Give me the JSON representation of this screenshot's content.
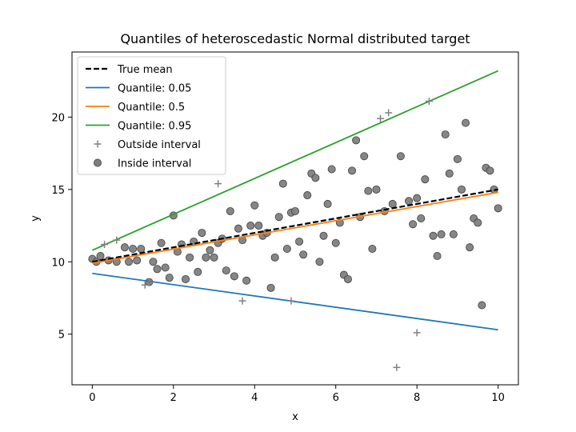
{
  "chart_data": {
    "type": "scatter",
    "title": "Quantiles of heteroscedastic Normal distributed target",
    "xlabel": "x",
    "ylabel": "y",
    "xlim": [
      -0.5,
      10.5
    ],
    "ylim": [
      1.5,
      24.5
    ],
    "xticks": [
      0,
      2,
      4,
      6,
      8,
      10
    ],
    "yticks": [
      5,
      10,
      15,
      20
    ],
    "xtick_labels": [
      "0",
      "2",
      "4",
      "6",
      "8",
      "10"
    ],
    "ytick_labels": [
      "5",
      "10",
      "15",
      "20"
    ],
    "grid": false,
    "legend_position": "upper-left",
    "lines": [
      {
        "name": "True mean",
        "color": "#000000",
        "dash": true,
        "x": [
          0,
          10
        ],
        "y": [
          10.0,
          15.0
        ]
      },
      {
        "name": "Quantile: 0.05",
        "color": "#1f77b4",
        "dash": false,
        "x": [
          0,
          10
        ],
        "y": [
          9.2,
          5.3
        ]
      },
      {
        "name": "Quantile: 0.5",
        "color": "#ff7f0e",
        "dash": false,
        "x": [
          0,
          10
        ],
        "y": [
          9.9,
          14.8
        ]
      },
      {
        "name": "Quantile: 0.95",
        "color": "#2ca02c",
        "dash": false,
        "x": [
          0,
          10
        ],
        "y": [
          10.8,
          23.2
        ]
      }
    ],
    "outside": {
      "name": "Outside interval",
      "x": [
        0.3,
        0.6,
        1.3,
        1.4,
        3.1,
        3.7,
        4.9,
        7.1,
        7.3,
        7.5,
        8.0,
        8.3
      ],
      "y": [
        11.2,
        11.5,
        8.4,
        8.6,
        15.4,
        7.3,
        7.3,
        19.9,
        20.3,
        2.7,
        5.1,
        21.1
      ]
    },
    "inside": {
      "name": "Inside interval",
      "x": [
        0.0,
        0.1,
        0.2,
        0.4,
        0.6,
        0.8,
        0.9,
        1.0,
        1.1,
        1.2,
        1.4,
        1.5,
        1.6,
        1.7,
        1.8,
        1.9,
        2.0,
        2.1,
        2.2,
        2.3,
        2.4,
        2.5,
        2.6,
        2.7,
        2.8,
        2.9,
        3.0,
        3.1,
        3.2,
        3.3,
        3.4,
        3.5,
        3.6,
        3.7,
        3.8,
        3.9,
        4.0,
        4.1,
        4.2,
        4.3,
        4.4,
        4.5,
        4.6,
        4.7,
        4.8,
        4.9,
        5.0,
        5.1,
        5.2,
        5.3,
        5.4,
        5.5,
        5.6,
        5.7,
        5.8,
        5.9,
        6.0,
        6.1,
        6.2,
        6.3,
        6.4,
        6.5,
        6.6,
        6.7,
        6.8,
        6.9,
        7.0,
        7.2,
        7.4,
        7.6,
        7.8,
        7.9,
        8.0,
        8.1,
        8.2,
        8.4,
        8.5,
        8.6,
        8.7,
        8.8,
        8.9,
        9.0,
        9.1,
        9.2,
        9.3,
        9.4,
        9.5,
        9.6,
        9.7,
        9.8,
        9.9,
        10.0
      ],
      "y": [
        10.2,
        10.0,
        10.4,
        10.1,
        10.0,
        11.0,
        10.0,
        10.9,
        10.1,
        10.9,
        8.6,
        10.0,
        9.5,
        11.3,
        9.6,
        8.9,
        13.2,
        10.7,
        11.2,
        8.8,
        10.3,
        11.4,
        9.3,
        12.0,
        10.3,
        10.8,
        10.3,
        11.3,
        11.6,
        9.4,
        13.5,
        9.0,
        12.3,
        11.5,
        8.7,
        12.5,
        13.9,
        12.5,
        11.8,
        12.0,
        8.2,
        10.3,
        13.1,
        15.4,
        10.9,
        13.4,
        13.5,
        11.4,
        10.5,
        14.6,
        16.1,
        15.8,
        10.0,
        11.8,
        14.0,
        16.4,
        11.3,
        12.7,
        9.1,
        8.8,
        16.3,
        18.4,
        13.1,
        17.3,
        14.9,
        10.9,
        15.0,
        13.5,
        14.0,
        17.3,
        14.2,
        12.6,
        14.4,
        13.0,
        15.7,
        11.8,
        10.4,
        11.9,
        18.8,
        16.1,
        11.9,
        17.1,
        15.0,
        19.6,
        11.0,
        13.0,
        12.7,
        7.0,
        16.5,
        16.3,
        15.0,
        13.7
      ]
    },
    "legend": [
      {
        "label": "True mean",
        "kind": "dash",
        "color": "#000000"
      },
      {
        "label": "Quantile: 0.05",
        "kind": "line",
        "color": "#1f77b4"
      },
      {
        "label": "Quantile: 0.5",
        "kind": "line",
        "color": "#ff7f0e"
      },
      {
        "label": "Quantile: 0.95",
        "kind": "line",
        "color": "#2ca02c"
      },
      {
        "label": "Outside interval",
        "kind": "plus",
        "color": "#808080"
      },
      {
        "label": "Inside interval",
        "kind": "circle",
        "color": "#808080"
      }
    ]
  }
}
